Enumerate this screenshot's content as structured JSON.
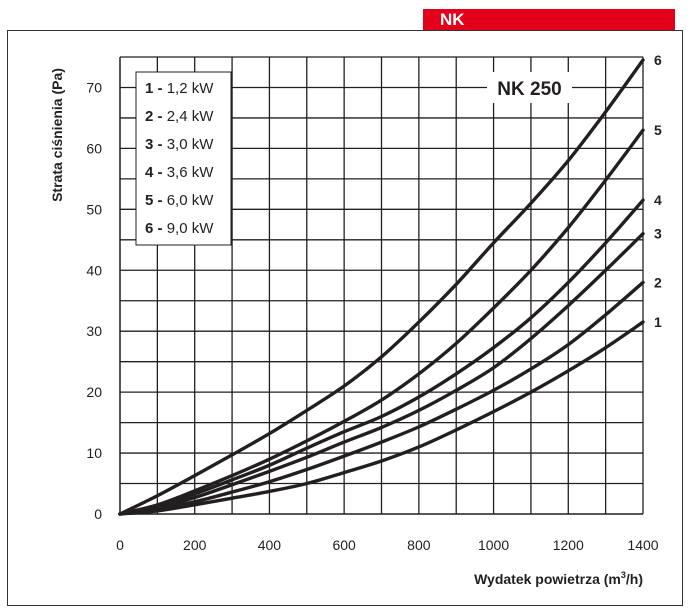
{
  "header": {
    "tag": "NK"
  },
  "chart_data": {
    "type": "line",
    "title": "NK 250",
    "xlabel": "Wydatek powietrza (m³/h)",
    "xlabel_main": "Wydatek powietrza (m",
    "xlabel_sup": "3",
    "xlabel_end": "/h)",
    "ylabel": "Strata ciśnienia (Pa)",
    "xlim": [
      0,
      1400
    ],
    "ylim": [
      0,
      75
    ],
    "xticks": [
      0,
      200,
      400,
      600,
      800,
      1000,
      1200,
      1400
    ],
    "yticks": [
      0,
      10,
      20,
      30,
      40,
      50,
      60,
      70
    ],
    "grid": true,
    "legend_position": "top-left",
    "legend": [
      {
        "num": "1",
        "text": "1,2 kW"
      },
      {
        "num": "2",
        "text": "2,4 kW"
      },
      {
        "num": "3",
        "text": "3,0 kW"
      },
      {
        "num": "4",
        "text": "3,6 kW"
      },
      {
        "num": "5",
        "text": "6,0 kW"
      },
      {
        "num": "6",
        "text": "9,0 kW"
      }
    ],
    "series": [
      {
        "name": "1",
        "label": "1,2 kW",
        "x": [
          0,
          100,
          200,
          300,
          400,
          500,
          600,
          700,
          800,
          900,
          1000,
          1100,
          1200,
          1300,
          1400
        ],
        "y": [
          0,
          0.5,
          1.5,
          2.6,
          3.7,
          5.0,
          6.8,
          8.7,
          11.0,
          13.8,
          16.8,
          20.0,
          23.5,
          27.3,
          31.5
        ]
      },
      {
        "name": "2",
        "label": "2,4 kW",
        "x": [
          0,
          100,
          200,
          300,
          400,
          500,
          600,
          700,
          800,
          900,
          1000,
          1100,
          1200,
          1300,
          1400
        ],
        "y": [
          0,
          0.8,
          2.0,
          3.6,
          5.3,
          7.3,
          9.5,
          11.8,
          14.3,
          17.2,
          20.3,
          23.8,
          27.8,
          32.7,
          38.0
        ]
      },
      {
        "name": "3",
        "label": "3,0 kW",
        "x": [
          0,
          100,
          200,
          300,
          400,
          500,
          600,
          700,
          800,
          900,
          1000,
          1100,
          1200,
          1300,
          1400
        ],
        "y": [
          0,
          1.0,
          2.7,
          4.8,
          7.0,
          9.3,
          11.8,
          14.2,
          17.0,
          20.3,
          24.0,
          28.8,
          34.2,
          40.0,
          46.0
        ]
      },
      {
        "name": "4",
        "label": "3,6 kW",
        "x": [
          0,
          100,
          200,
          300,
          400,
          500,
          600,
          700,
          800,
          900,
          1000,
          1100,
          1200,
          1300,
          1400
        ],
        "y": [
          0,
          1.3,
          3.3,
          5.6,
          8.0,
          10.8,
          13.5,
          16.0,
          19.2,
          23.0,
          27.3,
          32.2,
          38.0,
          44.5,
          51.5
        ]
      },
      {
        "name": "5",
        "label": "6,0 kW",
        "x": [
          0,
          100,
          200,
          300,
          400,
          500,
          600,
          700,
          800,
          900,
          1000,
          1100,
          1200,
          1300,
          1400
        ],
        "y": [
          0,
          1.5,
          3.8,
          6.3,
          9.0,
          12.0,
          15.2,
          18.7,
          23.0,
          28.0,
          33.8,
          40.0,
          47.0,
          54.8,
          63.0
        ]
      },
      {
        "name": "6",
        "label": "9,0 kW",
        "x": [
          0,
          100,
          200,
          300,
          400,
          500,
          600,
          700,
          800,
          900,
          1000,
          1100,
          1200,
          1300,
          1400
        ],
        "y": [
          0,
          3.0,
          6.3,
          9.7,
          13.2,
          17.0,
          21.0,
          25.8,
          31.5,
          37.7,
          44.5,
          51.0,
          58.0,
          66.0,
          74.5
        ]
      }
    ]
  }
}
